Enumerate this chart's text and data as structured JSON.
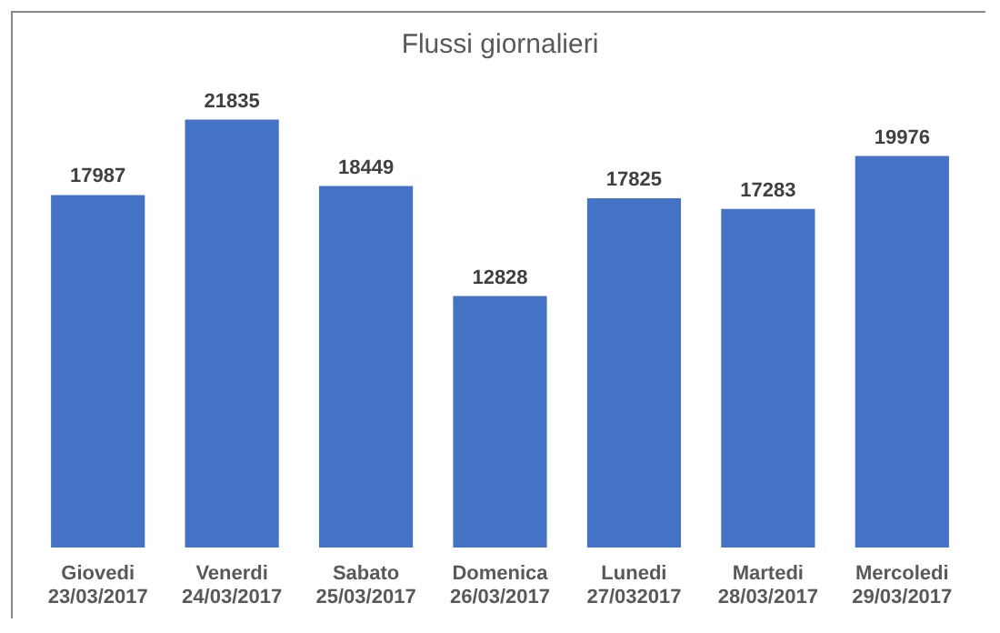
{
  "chart_data": {
    "type": "bar",
    "title": "Flussi giornalieri",
    "categories": [
      "Giovedi\n23/03/2017",
      "Venerdi\n24/03/2017",
      "Sabato\n25/03/2017",
      "Domenica\n26/03/2017",
      "Lunedi\n27/032017",
      "Martedi\n28/03/2017",
      "Mercoledi\n29/03/2017"
    ],
    "values": [
      17987,
      21835,
      18449,
      12828,
      17825,
      17283,
      19976
    ],
    "color": "#4472c4",
    "data_labels": true,
    "grid": false
  }
}
